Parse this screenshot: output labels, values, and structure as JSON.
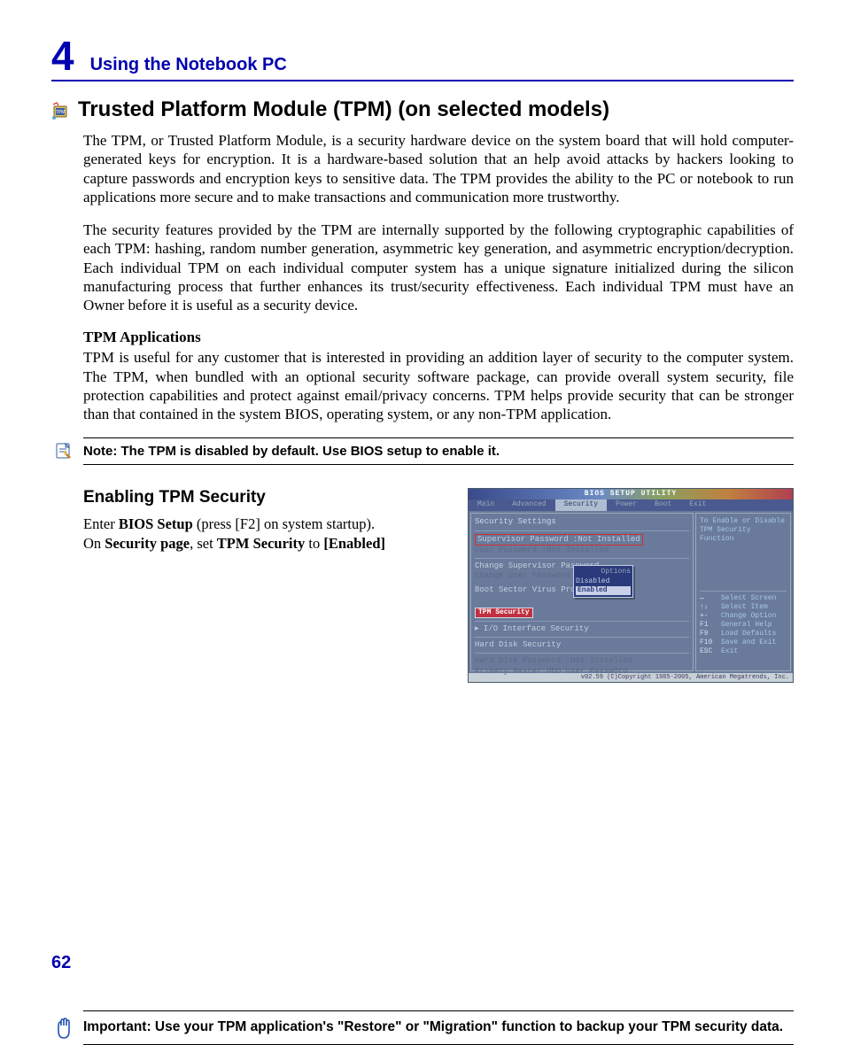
{
  "chapter": {
    "number": "4",
    "title": "Using the Notebook PC"
  },
  "section": {
    "heading": "Trusted Platform Module (TPM) (on selected models)",
    "para1": "The TPM, or Trusted Platform Module, is a security hardware device on the system board that will hold computer-generated keys for encryption. It is a hardware-based solution that an help avoid attacks by hackers looking to capture passwords and encryption keys to sensitive data. The TPM provides the ability to the PC or notebook to run applications more secure and to make transactions and communication more trustworthy.",
    "para2": "The security features provided by the TPM are internally supported by the following cryptographic capabilities of each TPM: hashing, random number generation, asymmetric key generation, and asymmetric encryption/decryption. Each individual TPM on each individual computer system has a unique signature initialized during the silicon manufacturing process that further enhances its trust/security effectiveness. Each individual TPM must have an Owner before it is useful as a security device.",
    "apps_heading": "TPM Applications",
    "apps_para": "TPM is useful for any customer that is interested in providing an addition layer of security to the computer system. The TPM, when bundled with an optional security software package, can provide overall system security, file protection capabilities and protect against email/privacy concerns. TPM helps provide security that can be stronger than that contained in the system BIOS, operating system, or any non-TPM application.",
    "note": "Note: The TPM is disabled by default. Use BIOS setup to enable it."
  },
  "enabling": {
    "heading": "Enabling TPM Security",
    "line1_a": "Enter ",
    "line1_b": "BIOS Setup",
    "line1_c": " (press [F2] on system startup).",
    "line2_a": "On ",
    "line2_b": "Security page",
    "line2_c": ", set ",
    "line2_d": "TPM Security",
    "line2_e": " to ",
    "line2_f": "[Enabled]"
  },
  "bios": {
    "title": "BIOS SETUP UTILITY",
    "tabs": [
      "Main",
      "Advanced",
      "Security",
      "Power",
      "Boot",
      "Exit"
    ],
    "active_tab_index": 2,
    "main_heading": "Security Settings",
    "sup_pw": "Supervisor Password :Not Installed",
    "user_pw": "User Password       :Not Installed",
    "chg_sup": "Change Supervisor Password",
    "chg_user": "Change User Password",
    "boot_sector": "Boot Sector Virus Protectio",
    "tpm_sec": "TPM Security",
    "io_sec": "▸ I/O Interface Security",
    "hdd_sec": "Hard Disk Security",
    "hdd_pw": "Hard Disk Password  :Not Installed",
    "pri_master": "Primary Master HDD User Password",
    "options_hdr": "Options",
    "opt_disabled": "Disabled",
    "opt_enabled": "Enabled",
    "side_top1": "To Enable or Disable",
    "side_top2": "TPM Security Function",
    "help": [
      {
        "k": "↔",
        "v": "Select Screen"
      },
      {
        "k": "↑↓",
        "v": "Select Item"
      },
      {
        "k": "+-",
        "v": "Change Option"
      },
      {
        "k": "F1",
        "v": "General Help"
      },
      {
        "k": "F9",
        "v": "Load Defaults"
      },
      {
        "k": "F10",
        "v": "Save and Exit"
      },
      {
        "k": "ESC",
        "v": "Exit"
      }
    ],
    "footer": "v02.59 (C)Copyright 1985-2005, American Megatrends, Inc."
  },
  "important": "Important: Use your TPM application's \"Restore\" or \"Migration\" function to backup your TPM security data.",
  "page_number": "62",
  "colors": {
    "brand_blue": "#0000b0",
    "bios_bg": "#6a7a9a",
    "bios_red": "#d03030",
    "bios_sel_red": "#c03040"
  }
}
